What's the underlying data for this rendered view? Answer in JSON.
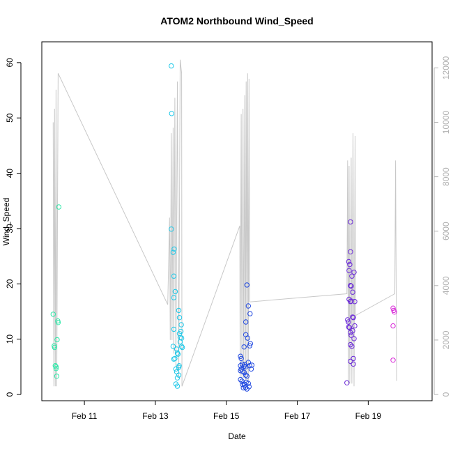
{
  "chart_data": {
    "type": "scatter",
    "title": "ATOM2 Northbound Wind_Speed",
    "xlabel": "Date",
    "ylabel": "Wind_Speed",
    "x_ticks": [
      "Feb 11",
      "Feb 13",
      "Feb 15",
      "Feb 17",
      "Feb 19"
    ],
    "x_tick_days": [
      11,
      13,
      15,
      17,
      19
    ],
    "x_range_days": [
      9.8,
      20.8
    ],
    "y_ticks": [
      0,
      10,
      20,
      30,
      40,
      50,
      60
    ],
    "ylim": [
      0,
      62
    ],
    "y2_ticks": [
      0,
      2000,
      4000,
      6000,
      8000,
      10000,
      12000
    ],
    "y2lim": [
      0,
      12600
    ],
    "grid": false,
    "legend": "none",
    "colors": {
      "secondary_axis": "#b0b0b0",
      "secondary_line": "#c8c8c8"
    },
    "series": [
      {
        "points": [
          [
            10.12,
            14.5,
            "#2ee8a8"
          ],
          [
            10.15,
            8.8,
            "#2ee8a8"
          ],
          [
            10.16,
            8.5,
            "#2ee8a8"
          ],
          [
            10.18,
            5.2,
            "#2ee8a8"
          ],
          [
            10.2,
            5.0,
            "#2ee8a8"
          ],
          [
            10.2,
            4.7,
            "#2ee8a8"
          ],
          [
            10.22,
            3.3,
            "#2ee8a8"
          ],
          [
            10.23,
            9.9,
            "#2ee8a8"
          ],
          [
            10.25,
            13.3,
            "#2ee8a8"
          ],
          [
            10.26,
            13.0,
            "#2ee8a8"
          ],
          [
            10.28,
            33.9,
            "#2ee8a8"
          ],
          [
            13.45,
            59.4,
            "#1ec8e8"
          ],
          [
            13.46,
            50.8,
            "#1ec8e8"
          ],
          [
            13.45,
            29.9,
            "#1ec8e8"
          ],
          [
            13.5,
            25.7,
            "#1ec8e8"
          ],
          [
            13.53,
            26.3,
            "#1ec8e8"
          ],
          [
            13.52,
            21.4,
            "#1ec8e8"
          ],
          [
            13.52,
            17.5,
            "#1ec8e8"
          ],
          [
            13.56,
            18.6,
            "#1ec8e8"
          ],
          [
            13.52,
            11.8,
            "#1ec8e8"
          ],
          [
            13.5,
            8.7,
            "#1ec8e8"
          ],
          [
            13.6,
            8.2,
            "#1ec8e8"
          ],
          [
            13.55,
            6.5,
            "#1ec8e8"
          ],
          [
            13.52,
            6.4,
            "#1ec8e8"
          ],
          [
            13.62,
            7.5,
            "#1ec8e8"
          ],
          [
            13.64,
            7.3,
            "#1ec8e8"
          ],
          [
            13.58,
            4.6,
            "#1ec8e8"
          ],
          [
            13.6,
            4.1,
            "#1ec8e8"
          ],
          [
            13.62,
            3.0,
            "#1ec8e8"
          ],
          [
            13.58,
            1.9,
            "#1ec8e8"
          ],
          [
            13.62,
            1.5,
            "#1ec8e8"
          ],
          [
            13.66,
            3.5,
            "#1ec8e8"
          ],
          [
            13.66,
            4.9,
            "#1ec8e8"
          ],
          [
            13.67,
            5.2,
            "#1ec8e8"
          ],
          [
            13.66,
            15.2,
            "#1ec8e8"
          ],
          [
            13.68,
            13.9,
            "#1ec8e8"
          ],
          [
            13.68,
            11.0,
            "#1ec8e8"
          ],
          [
            13.7,
            10.3,
            "#1ec8e8"
          ],
          [
            13.7,
            9.5,
            "#1ec8e8"
          ],
          [
            13.73,
            12.6,
            "#1ec8e8"
          ],
          [
            13.72,
            11.4,
            "#1ec8e8"
          ],
          [
            13.74,
            10.2,
            "#1ec8e8"
          ],
          [
            13.74,
            8.7,
            "#1ec8e8"
          ],
          [
            13.76,
            8.5,
            "#1ec8e8"
          ],
          [
            15.4,
            6.9,
            "#2048e0"
          ],
          [
            15.42,
            6.5,
            "#2048e0"
          ],
          [
            15.4,
            5.2,
            "#2048e0"
          ],
          [
            15.45,
            5.5,
            "#2048e0"
          ],
          [
            15.42,
            4.6,
            "#2048e0"
          ],
          [
            15.46,
            4.2,
            "#2048e0"
          ],
          [
            15.4,
            4.3,
            "#2048e0"
          ],
          [
            15.5,
            5.1,
            "#2048e0"
          ],
          [
            15.5,
            4.0,
            "#2048e0"
          ],
          [
            15.52,
            5.4,
            "#2048e0"
          ],
          [
            15.55,
            5.0,
            "#2048e0"
          ],
          [
            15.55,
            3.5,
            "#2048e0"
          ],
          [
            15.58,
            3.3,
            "#2048e0"
          ],
          [
            15.4,
            2.7,
            "#2048e0"
          ],
          [
            15.44,
            2.4,
            "#2048e0"
          ],
          [
            15.46,
            1.8,
            "#2048e0"
          ],
          [
            15.48,
            1.2,
            "#2048e0"
          ],
          [
            15.5,
            1.9,
            "#2048e0"
          ],
          [
            15.52,
            1.7,
            "#2048e0"
          ],
          [
            15.54,
            1.3,
            "#2048e0"
          ],
          [
            15.56,
            2.2,
            "#2048e0"
          ],
          [
            15.58,
            1.0,
            "#2048e0"
          ],
          [
            15.62,
            2.0,
            "#2048e0"
          ],
          [
            15.64,
            1.4,
            "#2048e0"
          ],
          [
            15.5,
            8.6,
            "#2048e0"
          ],
          [
            15.55,
            10.8,
            "#2048e0"
          ],
          [
            15.55,
            13.1,
            "#2048e0"
          ],
          [
            15.58,
            19.8,
            "#2048e0"
          ],
          [
            15.62,
            16.0,
            "#2048e0"
          ],
          [
            15.67,
            14.6,
            "#2048e0"
          ],
          [
            15.6,
            10.2,
            "#2048e0"
          ],
          [
            15.66,
            8.8,
            "#2048e0"
          ],
          [
            15.68,
            9.2,
            "#2048e0"
          ],
          [
            15.62,
            5.8,
            "#2048e0"
          ],
          [
            15.66,
            5.2,
            "#2048e0"
          ],
          [
            15.7,
            4.6,
            "#2048e0"
          ],
          [
            15.72,
            5.3,
            "#2048e0"
          ],
          [
            18.4,
            2.1,
            "#6a28d8"
          ],
          [
            18.42,
            13.5,
            "#6a28d8"
          ],
          [
            18.44,
            13.1,
            "#6a28d8"
          ],
          [
            18.45,
            12.2,
            "#6a28d8"
          ],
          [
            18.47,
            12.1,
            "#6a28d8"
          ],
          [
            18.45,
            24.0,
            "#6a28d8"
          ],
          [
            18.46,
            22.4,
            "#6a28d8"
          ],
          [
            18.48,
            23.5,
            "#6a28d8"
          ],
          [
            18.5,
            31.2,
            "#6a28d8"
          ],
          [
            18.5,
            25.8,
            "#6a28d8"
          ],
          [
            18.46,
            17.2,
            "#6a28d8"
          ],
          [
            18.5,
            16.8,
            "#6a28d8"
          ],
          [
            18.52,
            16.9,
            "#6a28d8"
          ],
          [
            18.5,
            19.7,
            "#6a28d8"
          ],
          [
            18.52,
            19.6,
            "#6a28d8"
          ],
          [
            18.54,
            21.4,
            "#6a28d8"
          ],
          [
            18.56,
            18.5,
            "#6a28d8"
          ],
          [
            18.56,
            14.0,
            "#6a28d8"
          ],
          [
            18.58,
            13.9,
            "#6a28d8"
          ],
          [
            18.5,
            11.2,
            "#6a28d8"
          ],
          [
            18.52,
            10.7,
            "#6a28d8"
          ],
          [
            18.56,
            11.5,
            "#6a28d8"
          ],
          [
            18.5,
            9.0,
            "#6a28d8"
          ],
          [
            18.54,
            8.7,
            "#6a28d8"
          ],
          [
            18.5,
            6.0,
            "#6a28d8"
          ],
          [
            18.58,
            6.5,
            "#6a28d8"
          ],
          [
            18.58,
            5.5,
            "#6a28d8"
          ],
          [
            18.6,
            22.1,
            "#6a28d8"
          ],
          [
            18.62,
            16.8,
            "#6a28d8"
          ],
          [
            18.62,
            12.4,
            "#6a28d8"
          ],
          [
            18.6,
            10.1,
            "#6a28d8"
          ],
          [
            19.7,
            15.6,
            "#d828d8"
          ],
          [
            19.72,
            15.2,
            "#d828d8"
          ],
          [
            19.74,
            14.9,
            "#d828d8"
          ],
          [
            19.7,
            12.4,
            "#d828d8"
          ],
          [
            19.7,
            6.2,
            "#d828d8"
          ]
        ]
      },
      {
        "axis": "secondary",
        "line_points": [
          [
            10.12,
            10000
          ],
          [
            10.14,
            300
          ],
          [
            10.16,
            10500
          ],
          [
            10.18,
            300
          ],
          [
            10.2,
            11200
          ],
          [
            10.22,
            300
          ],
          [
            10.26,
            11800
          ],
          [
            13.35,
            3300
          ],
          [
            13.4,
            6500
          ],
          [
            13.42,
            2000
          ],
          [
            13.45,
            9600
          ],
          [
            13.47,
            2000
          ],
          [
            13.5,
            9800
          ],
          [
            13.52,
            1500
          ],
          [
            13.55,
            10900
          ],
          [
            13.58,
            1000
          ],
          [
            13.62,
            11500
          ],
          [
            13.66,
            600
          ],
          [
            13.7,
            12300
          ],
          [
            13.74,
            11800
          ],
          [
            13.75,
            300
          ],
          [
            15.38,
            6200
          ],
          [
            15.39,
            600
          ],
          [
            15.42,
            10300
          ],
          [
            15.44,
            600
          ],
          [
            15.47,
            10500
          ],
          [
            15.49,
            600
          ],
          [
            15.52,
            11000
          ],
          [
            15.54,
            500
          ],
          [
            15.56,
            11500
          ],
          [
            15.58,
            500
          ],
          [
            15.6,
            11800
          ],
          [
            15.62,
            500
          ],
          [
            15.64,
            11600
          ],
          [
            15.66,
            3400
          ],
          [
            18.4,
            3700
          ],
          [
            18.42,
            8600
          ],
          [
            18.44,
            400
          ],
          [
            18.46,
            8400
          ],
          [
            18.48,
            400
          ],
          [
            18.52,
            8700
          ],
          [
            18.54,
            400
          ],
          [
            18.57,
            9600
          ],
          [
            18.6,
            300
          ],
          [
            18.63,
            9500
          ],
          [
            18.64,
            2900
          ],
          [
            19.75,
            3700
          ],
          [
            19.77,
            8600
          ],
          [
            19.8,
            500
          ]
        ]
      }
    ]
  }
}
